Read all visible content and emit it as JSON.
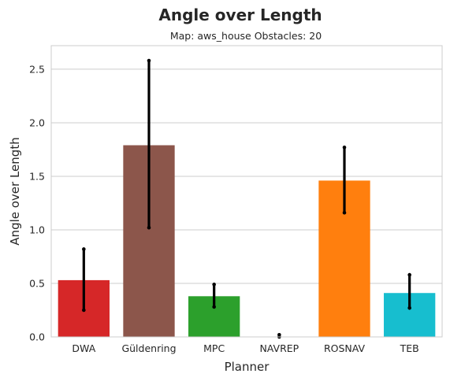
{
  "chart_data": {
    "type": "bar",
    "title": "Angle over Length",
    "subtitle": "Map: aws_house Obstacles: 20",
    "xlabel": "Planner",
    "ylabel": "Angle over Length",
    "categories": [
      "DWA",
      "Güldenring",
      "MPC",
      "NAVREP",
      "ROSNAV",
      "TEB"
    ],
    "values": [
      0.53,
      1.79,
      0.38,
      0.0,
      1.46,
      0.41
    ],
    "error_low": [
      0.25,
      1.02,
      0.28,
      0.0,
      1.16,
      0.27
    ],
    "error_high": [
      0.82,
      2.58,
      0.49,
      0.02,
      1.77,
      0.58
    ],
    "colors": [
      "#d62728",
      "#8c564b",
      "#2ca02c",
      "#9467bd",
      "#ff7f0e",
      "#17becf"
    ],
    "ylim": [
      0,
      2.72
    ],
    "yticks": [
      0.0,
      0.5,
      1.0,
      1.5,
      2.0,
      2.5
    ],
    "ytick_labels": [
      "0.0",
      "0.5",
      "1.0",
      "1.5",
      "2.0",
      "2.5"
    ],
    "grid": "horizontal",
    "legend": "none"
  }
}
